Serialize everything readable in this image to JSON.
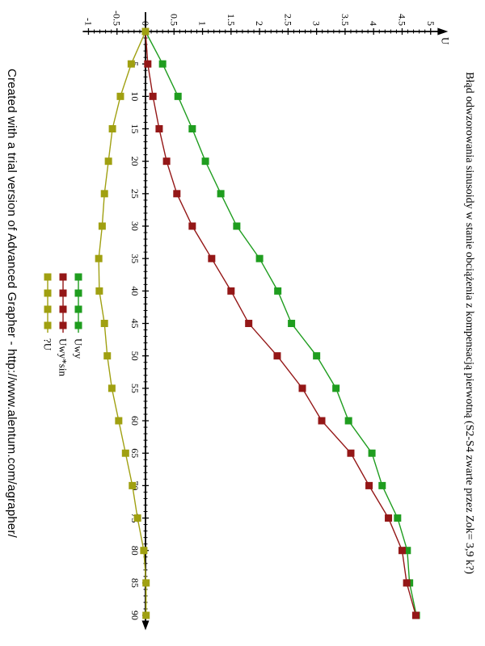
{
  "title": "Błąd odwzorowania sinusoidy w stanie obciążenia z kompensacją pierwotną (S2-S4 zwarte przez Zok= 3,9 k?)",
  "watermark": "Created with a trial version of Advanced Grapher - http://www.alentum.com/agrapher/",
  "chart_data": {
    "type": "line",
    "marker": "filled-square",
    "rotation": "entire chart rendered rotated 90deg clockwise",
    "x": [
      0,
      5,
      10,
      15,
      20,
      25,
      30,
      35,
      40,
      45,
      50,
      55,
      60,
      65,
      70,
      75,
      80,
      85,
      90
    ],
    "series": [
      {
        "name": "Uwy",
        "color": "#1f9d1f",
        "values": [
          0,
          0.3,
          0.57,
          0.82,
          1.05,
          1.32,
          1.6,
          2.0,
          2.32,
          2.56,
          3.0,
          3.34,
          3.56,
          3.97,
          4.15,
          4.42,
          4.59,
          4.63,
          4.75
        ]
      },
      {
        "name": "Uwy*sin",
        "color": "#941717",
        "values": [
          0,
          0.04,
          0.13,
          0.24,
          0.37,
          0.55,
          0.82,
          1.16,
          1.5,
          1.81,
          2.31,
          2.75,
          3.09,
          3.6,
          3.92,
          4.26,
          4.5,
          4.58,
          4.74
        ]
      },
      {
        "name": "?U",
        "color": "#a0a011",
        "values": [
          0,
          -0.25,
          -0.44,
          -0.58,
          -0.65,
          -0.72,
          -0.76,
          -0.82,
          -0.81,
          -0.72,
          -0.67,
          -0.59,
          -0.47,
          -0.35,
          -0.23,
          -0.14,
          -0.03,
          0.01,
          0.01
        ]
      }
    ],
    "xlabel": "",
    "ylabel": "U",
    "xlim": [
      0,
      90
    ],
    "ylim": [
      -1,
      5
    ],
    "x_major_step": 5,
    "x_minor_step": 1,
    "y_major_step": 0.5,
    "y_minor_step": 0.1,
    "x_tick_labels": [
      "5",
      "10",
      "15",
      "20",
      "25",
      "30",
      "35",
      "40",
      "45",
      "50",
      "55",
      "60",
      "65",
      "70",
      "75",
      "80",
      "85",
      "90"
    ],
    "y_tick_labels": [
      "-1",
      "-0.5",
      "0",
      "0.5",
      "1",
      "1.5",
      "2",
      "2.5",
      "3",
      "3.5",
      "4",
      "4.5",
      "5"
    ],
    "grid": false,
    "legend_position": "below-x-axis-center",
    "axis_color": "#000000"
  }
}
